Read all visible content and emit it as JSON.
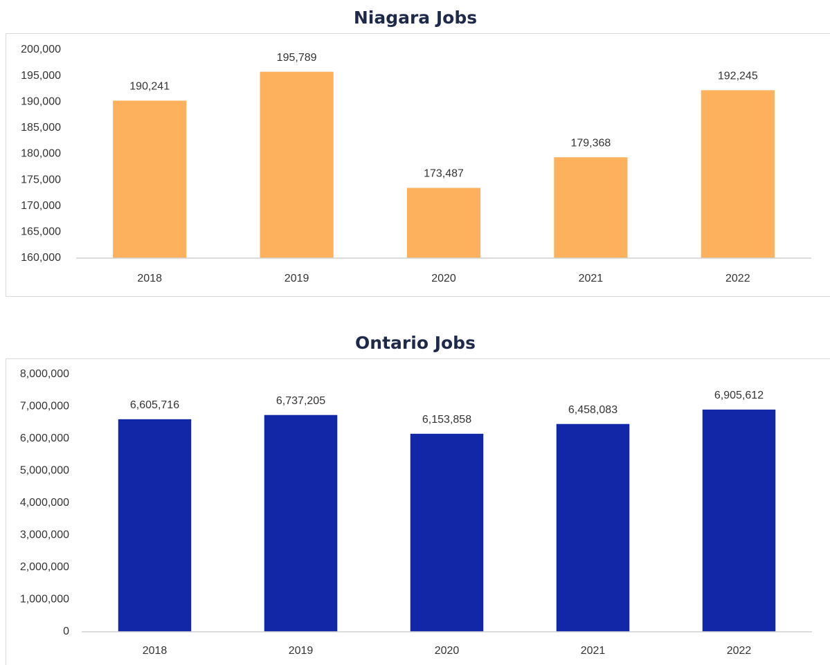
{
  "chart_data": [
    {
      "type": "bar",
      "title": "Niagara Jobs",
      "categories": [
        "2018",
        "2019",
        "2020",
        "2021",
        "2022"
      ],
      "values": [
        190241,
        195789,
        173487,
        179368,
        192245
      ],
      "value_labels": [
        "190,241",
        "195,789",
        "173,487",
        "179,368",
        "192,245"
      ],
      "color": "#fdb15c",
      "ylim": [
        160000,
        200000
      ],
      "yticks": [
        {
          "value": 160000,
          "label": "160,000"
        },
        {
          "value": 165000,
          "label": "165,000"
        },
        {
          "value": 170000,
          "label": "170,000"
        },
        {
          "value": 175000,
          "label": "175,000"
        },
        {
          "value": 180000,
          "label": "180,000"
        },
        {
          "value": 185000,
          "label": "185,000"
        },
        {
          "value": 190000,
          "label": "190,000"
        },
        {
          "value": 195000,
          "label": "195,000"
        },
        {
          "value": 200000,
          "label": "200,000"
        }
      ],
      "grid": false
    },
    {
      "type": "bar",
      "title": "Ontario Jobs",
      "categories": [
        "2018",
        "2019",
        "2020",
        "2021",
        "2022"
      ],
      "values": [
        6605716,
        6737205,
        6153858,
        6458083,
        6905612
      ],
      "value_labels": [
        "6,605,716",
        "6,737,205",
        "6,153,858",
        "6,458,083",
        "6,905,612"
      ],
      "color": "#1226a8",
      "ylim": [
        0,
        8000000
      ],
      "yticks": [
        0,
        {
          "value": 1000000,
          "label": "1,000,000"
        },
        {
          "value": 2000000,
          "label": "2,000,000"
        },
        {
          "value": 3000000,
          "label": "3,000,000"
        },
        {
          "value": 4000000,
          "label": "4,000,000"
        },
        {
          "value": 5000000,
          "label": "5,000,000"
        },
        {
          "value": 6000000,
          "label": "6,000,000"
        },
        {
          "value": 7000000,
          "label": "7,000,000"
        },
        {
          "value": 8000000,
          "label": "8,000,000"
        }
      ],
      "grid": false
    }
  ]
}
